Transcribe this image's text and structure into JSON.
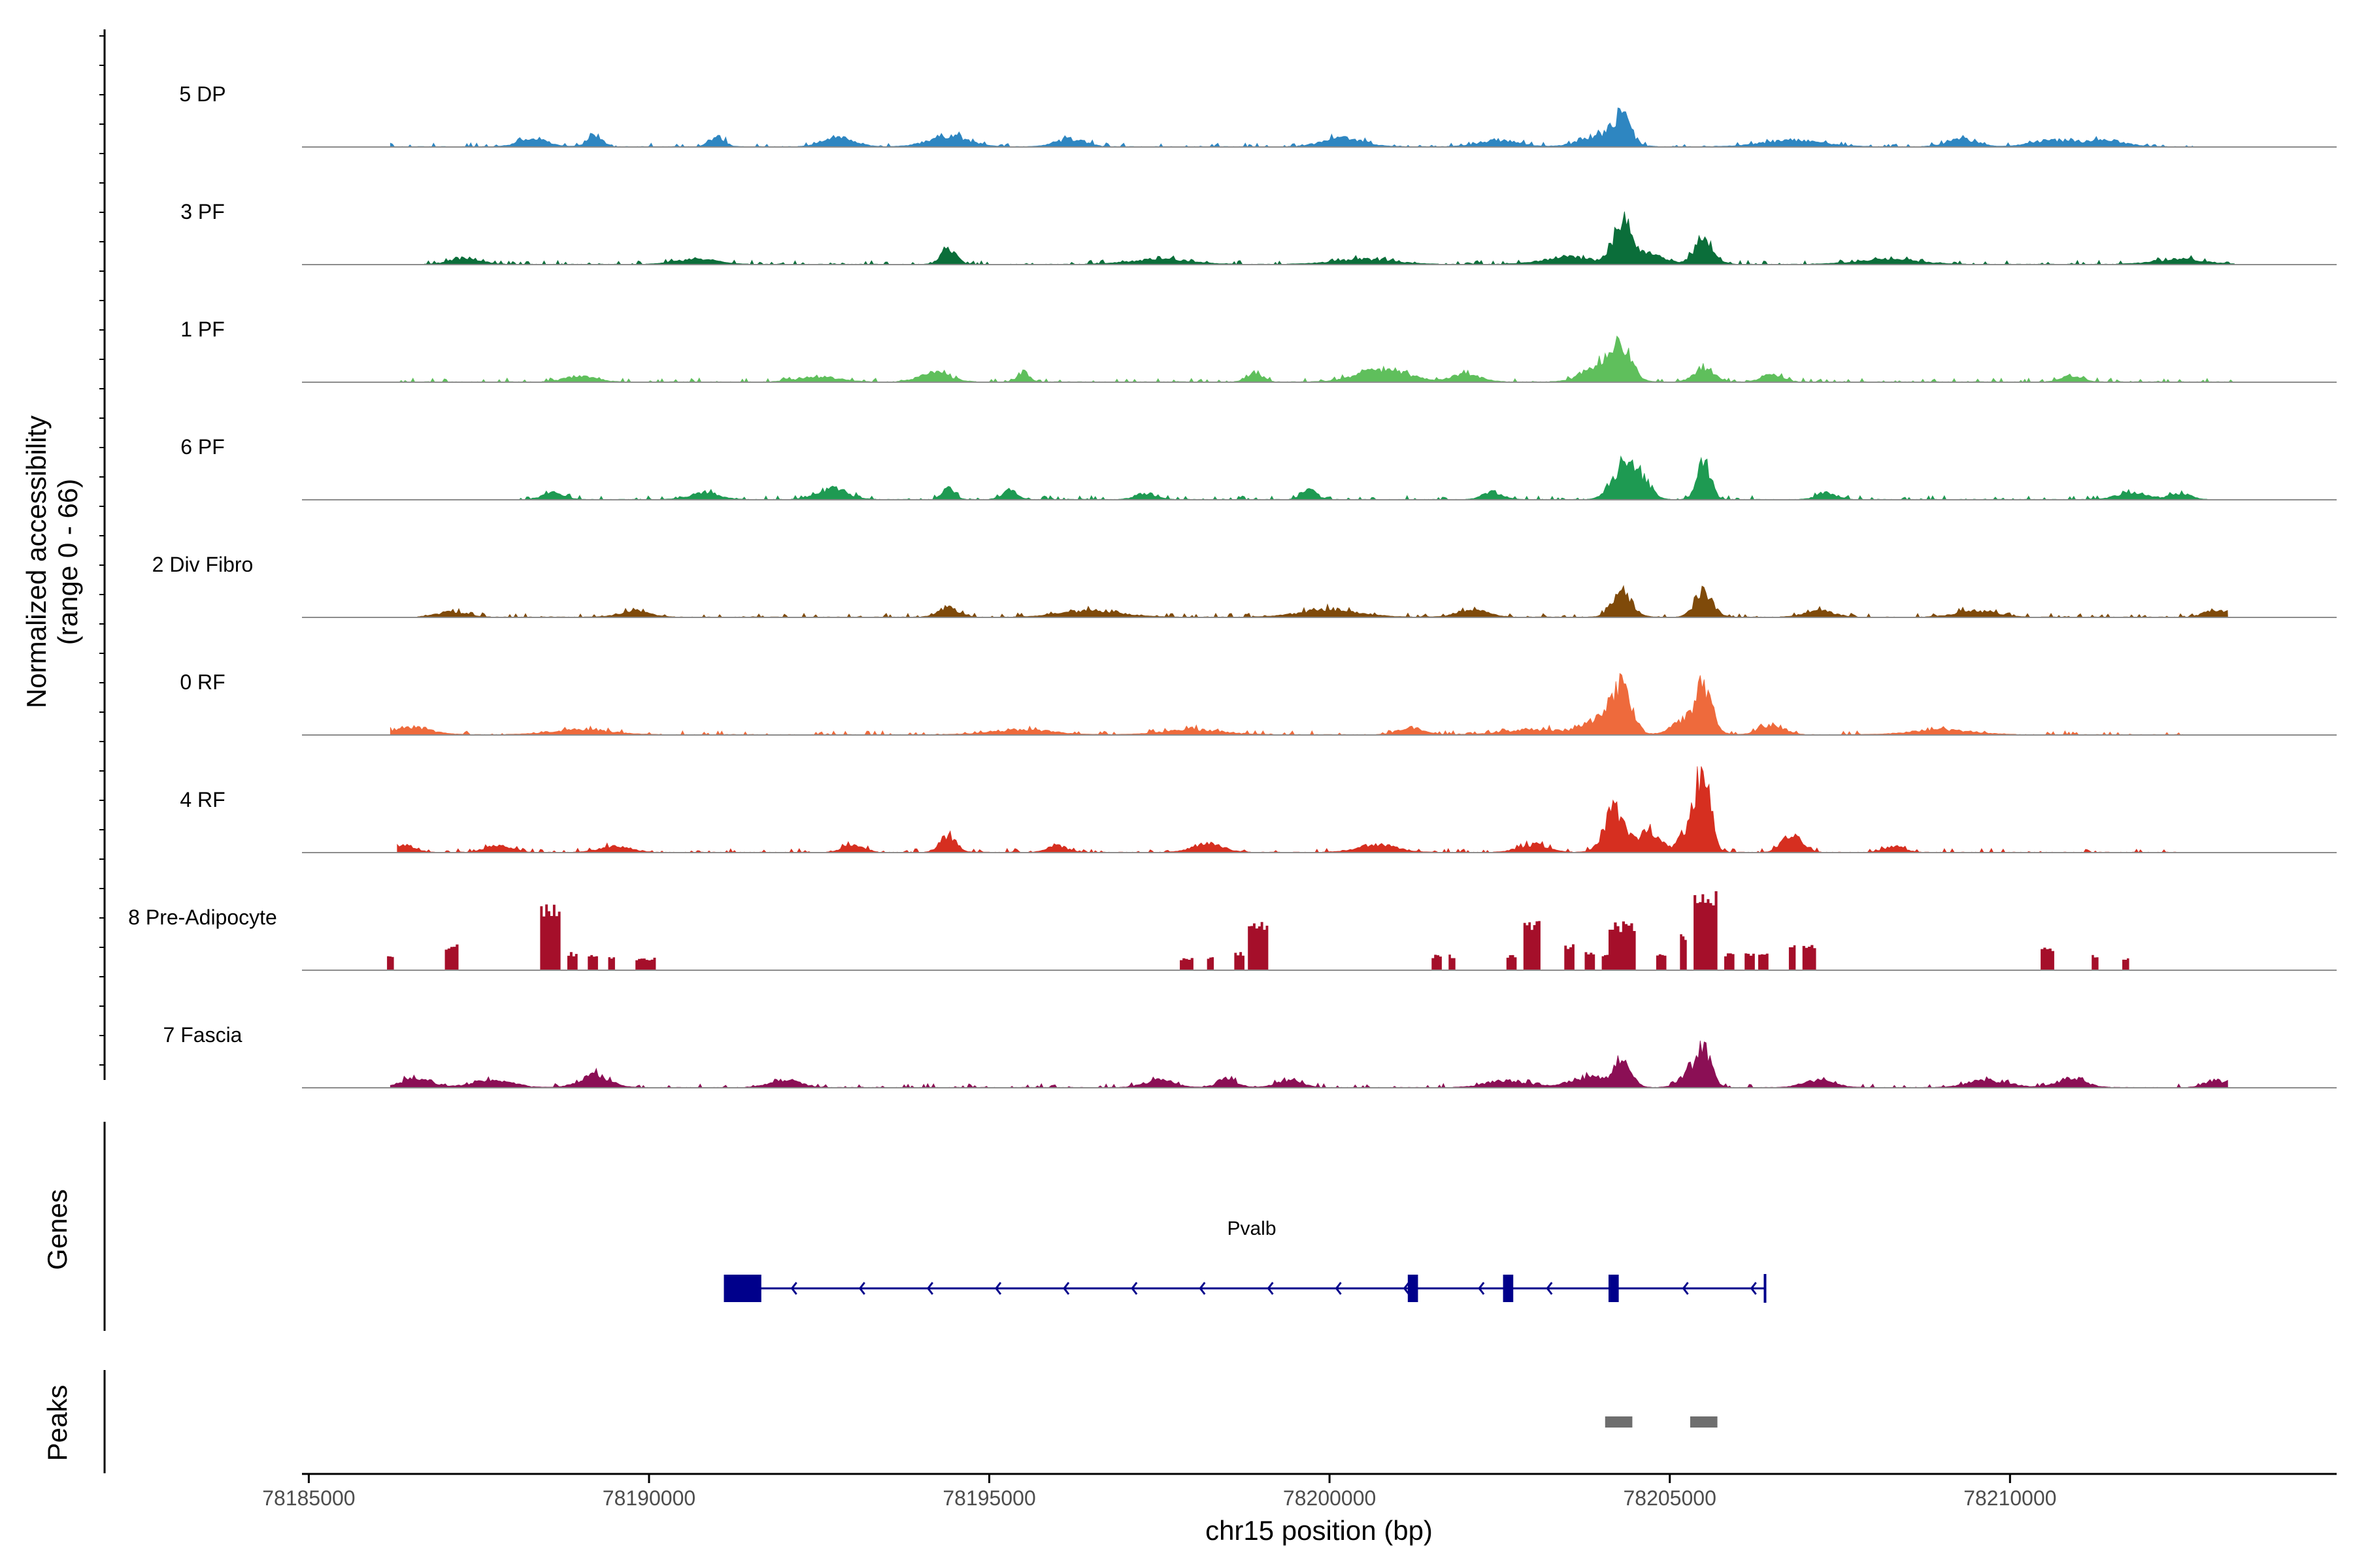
{
  "chart_data": {
    "type": "area",
    "title": "",
    "xlabel": "chr15 position (bp)",
    "ylabel": "Normalized accessibility",
    "ylabel_range": "(range 0 - 66)",
    "xlim": [
      78184900,
      78214800
    ],
    "ylim": [
      0,
      66
    ],
    "x_ticks": [
      78185000,
      78190000,
      78195000,
      78200000,
      78205000,
      78210000
    ],
    "x_tick_labels": [
      "78185000",
      "78190000",
      "78195000",
      "78200000",
      "78205000",
      "78210000"
    ],
    "tracks": [
      {
        "name": "5 DP",
        "color": "#2E86C1",
        "style": "smooth",
        "xrange": [
          78186200,
          78212700
        ],
        "peaks": [
          [
            78204300,
            20,
            180
          ],
          [
            78204000,
            9,
            400
          ],
          [
            78189200,
            10,
            150
          ],
          [
            78191000,
            8,
            150
          ],
          [
            78192800,
            8,
            300
          ],
          [
            78194400,
            9,
            400
          ],
          [
            78188300,
            6,
            300
          ],
          [
            78196200,
            6,
            300
          ],
          [
            78200200,
            7,
            400
          ],
          [
            78202500,
            5,
            400
          ],
          [
            78206800,
            5,
            600
          ],
          [
            78209300,
            6,
            300
          ],
          [
            78210600,
            5,
            400
          ],
          [
            78211400,
            5,
            400
          ]
        ]
      },
      {
        "name": "3 PF",
        "color": "#0B6E3A",
        "style": "smooth",
        "xrange": [
          78186700,
          78213300
        ],
        "peaks": [
          [
            78204300,
            34,
            180
          ],
          [
            78205500,
            20,
            200
          ],
          [
            78194400,
            14,
            150
          ],
          [
            78203500,
            6,
            500
          ],
          [
            78204700,
            8,
            300
          ],
          [
            78187300,
            5,
            300
          ],
          [
            78190700,
            4,
            400
          ],
          [
            78197500,
            4,
            600
          ],
          [
            78200500,
            4,
            600
          ],
          [
            78208200,
            4,
            600
          ],
          [
            78212500,
            4,
            500
          ]
        ]
      },
      {
        "name": "1 PF",
        "color": "#5FBF5C",
        "style": "smooth",
        "xrange": [
          78186300,
          78213300
        ],
        "peaks": [
          [
            78204300,
            26,
            200
          ],
          [
            78204000,
            14,
            350
          ],
          [
            78205500,
            12,
            200
          ],
          [
            78194200,
            8,
            300
          ],
          [
            78195500,
            8,
            120
          ],
          [
            78198900,
            8,
            150
          ],
          [
            78200800,
            10,
            500
          ],
          [
            78202000,
            6,
            300
          ],
          [
            78206500,
            6,
            200
          ],
          [
            78189000,
            5,
            300
          ],
          [
            78192500,
            4,
            400
          ],
          [
            78210900,
            5,
            200
          ]
        ]
      },
      {
        "name": "6 PF",
        "color": "#1E9A52",
        "style": "smooth",
        "xrange": [
          78188000,
          78212900
        ],
        "peaks": [
          [
            78204300,
            28,
            220
          ],
          [
            78204600,
            16,
            180
          ],
          [
            78205500,
            30,
            140
          ],
          [
            78194400,
            12,
            120
          ],
          [
            78195300,
            8,
            150
          ],
          [
            78192700,
            9,
            300
          ],
          [
            78199700,
            8,
            150
          ],
          [
            78188600,
            6,
            200
          ],
          [
            78190800,
            5,
            300
          ],
          [
            78197300,
            5,
            200
          ],
          [
            78202400,
            6,
            200
          ],
          [
            78207300,
            5,
            200
          ],
          [
            78211800,
            6,
            300
          ],
          [
            78212500,
            5,
            200
          ]
        ]
      },
      {
        "name": "2 Div Fibro",
        "color": "#7F4A0A",
        "style": "smooth",
        "xrange": [
          78186600,
          78213200
        ],
        "peaks": [
          [
            78204300,
            20,
            200
          ],
          [
            78205500,
            22,
            180
          ],
          [
            78194400,
            8,
            200
          ],
          [
            78200000,
            6,
            600
          ],
          [
            78196500,
            5,
            600
          ],
          [
            78202100,
            6,
            300
          ],
          [
            78189800,
            5,
            300
          ],
          [
            78207200,
            5,
            300
          ],
          [
            78209500,
            5,
            400
          ],
          [
            78213000,
            6,
            200
          ],
          [
            78187100,
            4,
            300
          ]
        ]
      },
      {
        "name": "0 RF",
        "color": "#EE6A3C",
        "style": "smooth",
        "xrange": [
          78186200,
          78212600
        ],
        "peaks": [
          [
            78204300,
            34,
            200
          ],
          [
            78204000,
            12,
            350
          ],
          [
            78205500,
            38,
            180
          ],
          [
            78205200,
            10,
            250
          ],
          [
            78206500,
            8,
            250
          ],
          [
            78186500,
            6,
            400
          ],
          [
            78201200,
            6,
            250
          ],
          [
            78189000,
            4,
            600
          ],
          [
            78195500,
            4,
            600
          ],
          [
            78198000,
            4,
            600
          ],
          [
            78203000,
            4,
            600
          ],
          [
            78209000,
            4,
            600
          ]
        ]
      },
      {
        "name": "4 RF",
        "color": "#D62F20",
        "style": "smooth",
        "xrange": [
          78186300,
          78212600
        ],
        "peaks": [
          [
            78204200,
            36,
            220
          ],
          [
            78204700,
            18,
            200
          ],
          [
            78205500,
            66,
            140
          ],
          [
            78205300,
            20,
            220
          ],
          [
            78194400,
            14,
            160
          ],
          [
            78186400,
            6,
            200
          ],
          [
            78187800,
            6,
            250
          ],
          [
            78189500,
            5,
            300
          ],
          [
            78193000,
            6,
            200
          ],
          [
            78196000,
            5,
            200
          ],
          [
            78198200,
            7,
            300
          ],
          [
            78200700,
            6,
            400
          ],
          [
            78206800,
            14,
            200
          ],
          [
            78203000,
            6,
            300
          ],
          [
            78208300,
            5,
            200
          ]
        ]
      },
      {
        "name": "8 Pre-Adipocyte",
        "color": "#A50F2A",
        "style": "blocks",
        "xrange": [
          78186000,
          78212000
        ],
        "blocks": [
          [
            78186150,
            78186250,
            12
          ],
          [
            78187000,
            78187200,
            20
          ],
          [
            78188400,
            78188700,
            52
          ],
          [
            78188800,
            78188950,
            14
          ],
          [
            78189100,
            78189250,
            12
          ],
          [
            78189400,
            78189500,
            10
          ],
          [
            78189800,
            78190100,
            10
          ],
          [
            78197800,
            78198000,
            10
          ],
          [
            78198200,
            78198300,
            10
          ],
          [
            78198600,
            78198750,
            14
          ],
          [
            78198800,
            78199100,
            38
          ],
          [
            78201500,
            78201650,
            12
          ],
          [
            78201750,
            78201850,
            12
          ],
          [
            78202600,
            78202750,
            12
          ],
          [
            78202850,
            78203100,
            38
          ],
          [
            78203450,
            78203600,
            20
          ],
          [
            78203750,
            78203900,
            14
          ],
          [
            78204000,
            78204100,
            12
          ],
          [
            78204100,
            78204500,
            38
          ],
          [
            78204800,
            78204950,
            14
          ],
          [
            78205150,
            78205250,
            30
          ],
          [
            78205350,
            78205700,
            66
          ],
          [
            78205800,
            78205950,
            14
          ],
          [
            78206100,
            78206250,
            14
          ],
          [
            78206300,
            78206450,
            14
          ],
          [
            78206750,
            78206850,
            20
          ],
          [
            78206950,
            78207150,
            20
          ],
          [
            78210450,
            78210650,
            18
          ],
          [
            78211200,
            78211300,
            12
          ],
          [
            78211650,
            78211750,
            10
          ]
        ]
      },
      {
        "name": "7 Fascia",
        "color": "#8B0F55",
        "style": "smooth",
        "xrange": [
          78186200,
          78213200
        ],
        "peaks": [
          [
            78204300,
            20,
            180
          ],
          [
            78205500,
            28,
            160
          ],
          [
            78205300,
            10,
            220
          ],
          [
            78189200,
            10,
            300
          ],
          [
            78186600,
            8,
            300
          ],
          [
            78187700,
            6,
            400
          ],
          [
            78192000,
            6,
            300
          ],
          [
            78197500,
            6,
            300
          ],
          [
            78198500,
            7,
            200
          ],
          [
            78199400,
            6,
            250
          ],
          [
            78202600,
            6,
            400
          ],
          [
            78203800,
            8,
            400
          ],
          [
            78207200,
            6,
            300
          ],
          [
            78209700,
            6,
            400
          ],
          [
            78210900,
            7,
            300
          ],
          [
            78213000,
            6,
            200
          ]
        ]
      }
    ],
    "genes_label": "Genes",
    "gene": {
      "name": "Pvalb",
      "strand": "-",
      "start": 78191100,
      "end": 78206400,
      "exons": [
        [
          78191100,
          78191650,
          "utr"
        ],
        [
          78201150,
          78201300,
          "cds"
        ],
        [
          78202550,
          78202700,
          "cds"
        ],
        [
          78204100,
          78204250,
          "cds"
        ]
      ],
      "arrow_positions": [
        78192100,
        78193100,
        78194100,
        78195100,
        78196100,
        78197100,
        78198100,
        78199100,
        78200100,
        78201100,
        78202200,
        78203200,
        78205200,
        78206200
      ]
    },
    "peaks_label": "Peaks",
    "peak_regions": [
      [
        78204050,
        78204450
      ],
      [
        78205300,
        78205700
      ]
    ],
    "colors": {
      "gene": "#00008B",
      "peak": "#6E6E6E",
      "baseline": "#8C8C8C",
      "axis": "#000000",
      "tick_label": "#4D4D4D"
    }
  }
}
